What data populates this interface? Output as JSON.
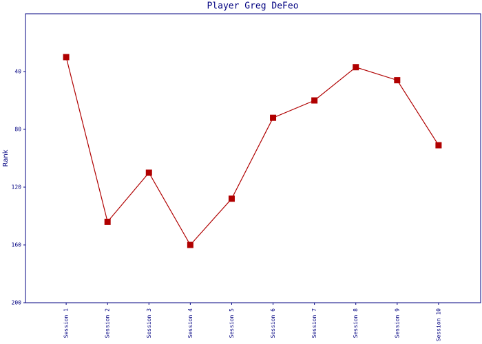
{
  "chart_data": {
    "type": "line",
    "title": "Player Greg DeFeo",
    "y_label": "Rank",
    "categories": [
      "Session 1",
      "Session 2",
      "Session 3",
      "Session 4",
      "Session 5",
      "Session 6",
      "Session 7",
      "Session 8",
      "Session 9",
      "Session 10"
    ],
    "series": [
      {
        "name": "Rank",
        "color": "#b00000",
        "values": [
          30,
          144,
          110,
          160,
          128,
          72,
          60,
          37,
          46,
          91
        ]
      }
    ],
    "ylim": [
      200,
      0
    ],
    "yticks": [
      40,
      80,
      120,
      160,
      200
    ],
    "grid": false
  }
}
